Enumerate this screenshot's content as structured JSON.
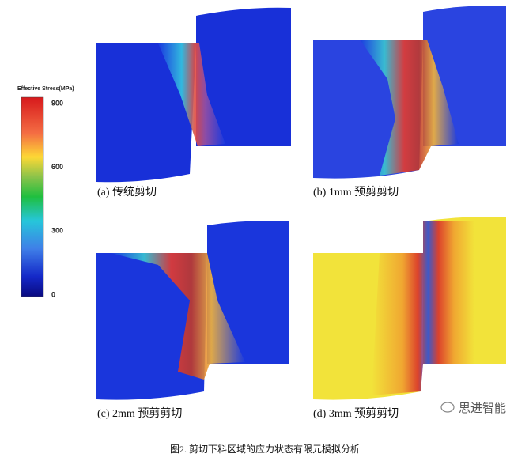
{
  "colorbar": {
    "title": "Effective Stress(MPa)",
    "ticks": [
      900,
      600,
      300,
      0
    ]
  },
  "panels": [
    {
      "caption": "(a)  传统剪切"
    },
    {
      "caption": "(b) 1mm  预剪剪切"
    },
    {
      "caption": "(c) 2mm  预剪剪切"
    },
    {
      "caption": "(d) 3mm  预剪剪切"
    }
  ],
  "watermark": "思进智能",
  "figure_caption": "图2.  剪切下料区域的应力状态有限元模拟分析"
}
